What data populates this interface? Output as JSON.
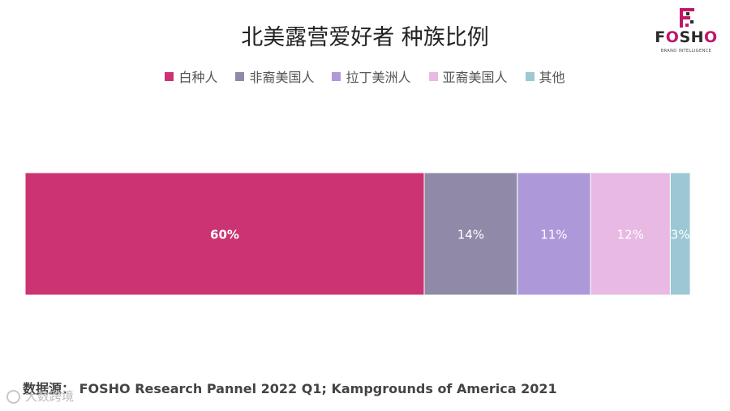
{
  "chart_data": {
    "type": "bar",
    "orientation": "horizontal-stacked-100",
    "title": "北美露营爱好者 种族比例",
    "legend_position": "top",
    "grid": false,
    "categories": [
      ""
    ],
    "series": [
      {
        "name": "白种人",
        "values": [
          60
        ],
        "label": "60%",
        "color": "#cc3372"
      },
      {
        "name": "非裔美国人",
        "values": [
          14
        ],
        "label": "14%",
        "color": "#9089a8"
      },
      {
        "name": "拉丁美洲人",
        "values": [
          11
        ],
        "label": "11%",
        "color": "#ad99da"
      },
      {
        "name": "亚裔美国人",
        "values": [
          12
        ],
        "label": "12%",
        "color": "#e8b9e2"
      },
      {
        "name": "其他",
        "values": [
          3
        ],
        "label": "3%",
        "color": "#9cc8d4"
      }
    ]
  },
  "source": "数据源： FOSHO Research Pannel 2022 Q1; Kampgrounds of America 2021",
  "logo": {
    "word_a": "F",
    "word_o1": "O",
    "word_b": "SH",
    "word_o2": "O",
    "tagline": "BRAND INTELLIGENCE"
  },
  "watermark": "大数跨境"
}
